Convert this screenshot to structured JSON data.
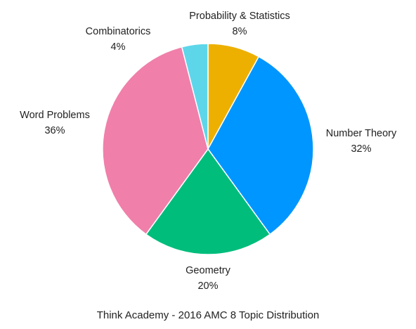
{
  "chart_data": {
    "type": "pie",
    "title": "Think Academy - 2016 AMC 8 Topic Distribution",
    "start_angle_deg": 0,
    "direction": "clockwise",
    "legend": "none",
    "slices": [
      {
        "label": "Probability & Statistics",
        "value": 8,
        "display": "8%",
        "color": "#EDB000"
      },
      {
        "label": "Number Theory",
        "value": 32,
        "display": "32%",
        "color": "#0096FF"
      },
      {
        "label": "Geometry",
        "value": 20,
        "display": "20%",
        "color": "#00BD7C"
      },
      {
        "label": "Word Problems",
        "value": 36,
        "display": "36%",
        "color": "#F07FAA"
      },
      {
        "label": "Combinatorics",
        "value": 4,
        "display": "4%",
        "color": "#5ED6EA"
      }
    ]
  }
}
